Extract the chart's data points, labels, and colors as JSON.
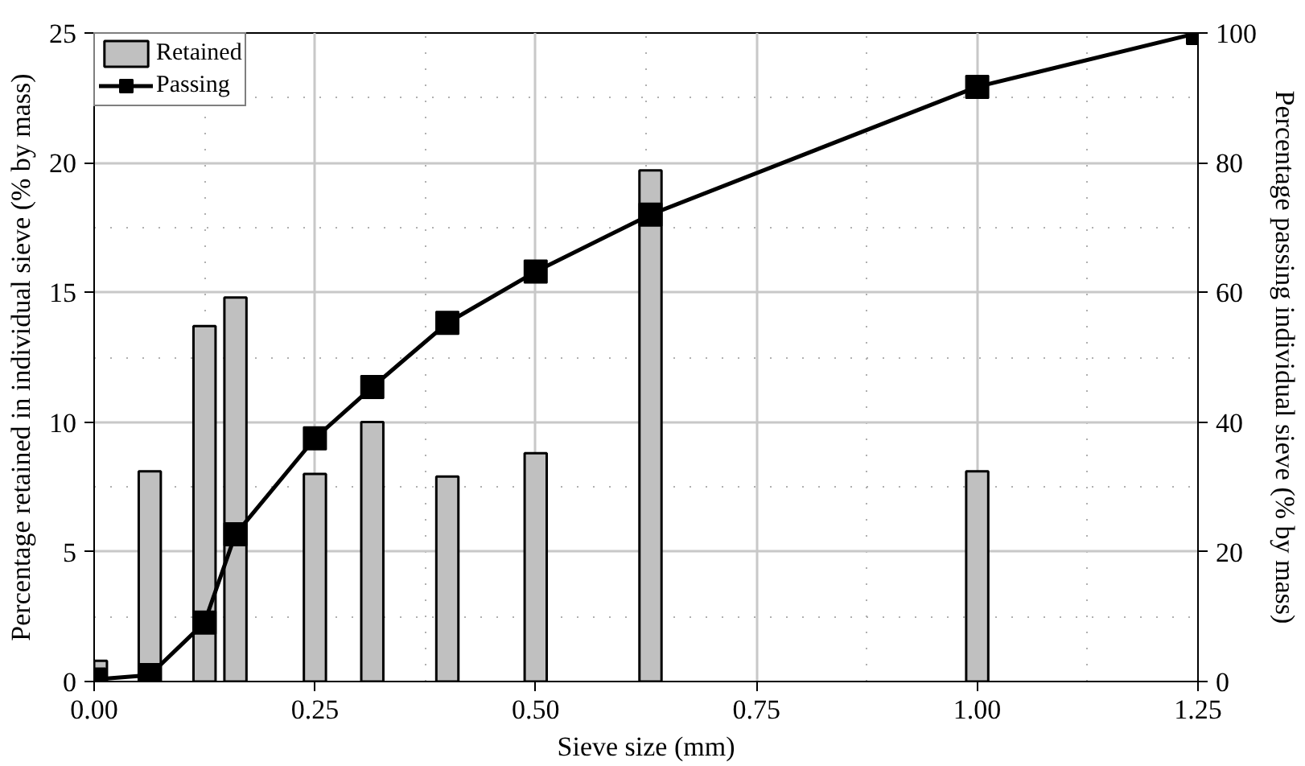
{
  "chart_data": {
    "type": "bar",
    "xlabel": "Sieve size (mm)",
    "ylabel": "Percentage retained in individual sieve (% by mass)",
    "y2label": "Percentage passing individual sieve (% by mass)",
    "xlim": [
      0,
      1.25
    ],
    "xticks": [
      {
        "value": 0,
        "label": "0.00"
      },
      {
        "value": 0.25,
        "label": "0.25"
      },
      {
        "value": 0.5,
        "label": "0.50"
      },
      {
        "value": 0.75,
        "label": "0.75"
      },
      {
        "value": 1,
        "label": "1.00"
      },
      {
        "value": 1.25,
        "label": "1.25"
      }
    ],
    "ylim": [
      0,
      25
    ],
    "yticks": [
      0,
      5,
      10,
      15,
      20,
      25
    ],
    "y2lim": [
      0,
      100
    ],
    "y2ticks": [
      0,
      20,
      40,
      60,
      80,
      100
    ],
    "grid": true,
    "legend": "top left",
    "series": [
      {
        "name": "Retained",
        "color": "#c0c0c0",
        "x": [
          0.002,
          0.063,
          0.125,
          0.16,
          0.25,
          0.315,
          0.4,
          0.5,
          0.63,
          1.0
        ],
        "values": [
          0.8,
          8.1,
          13.7,
          14.8,
          8.0,
          10.0,
          7.9,
          8.8,
          19.7,
          8.1
        ]
      },
      {
        "name": "Passing",
        "type": "line",
        "axis": "y2",
        "color": "#000000",
        "marker": "square",
        "line_style": "solid",
        "x": [
          0,
          0.063,
          0.125,
          0.16,
          0.25,
          0.315,
          0.4,
          0.5,
          0.63,
          1.0,
          1.25
        ],
        "values": [
          0.3,
          1,
          9.1,
          22.7,
          37.5,
          45.4,
          55.3,
          63.2,
          72,
          91.7,
          100
        ]
      }
    ]
  }
}
